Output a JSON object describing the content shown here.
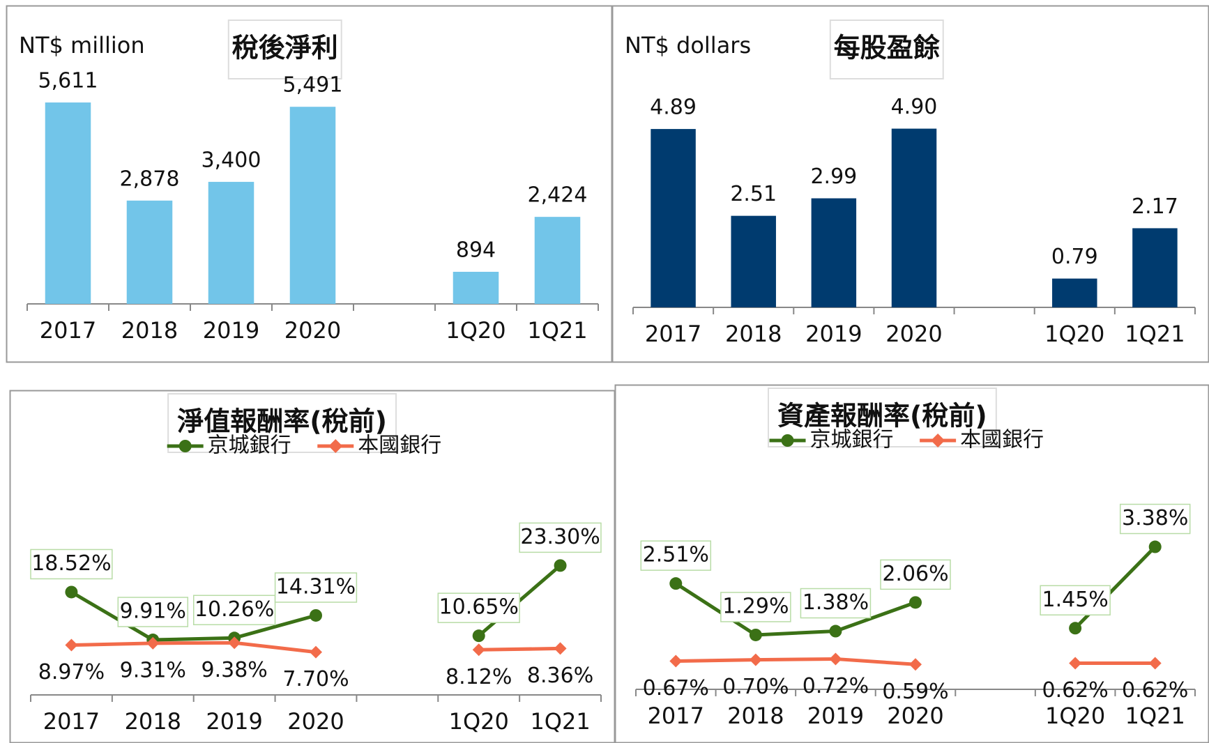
{
  "chart_data": [
    {
      "type": "bar",
      "title": "稅後淨利",
      "unit": "NT$ million",
      "color": "#72c5e9",
      "categories": [
        "2017",
        "2018",
        "2019",
        "2020",
        null,
        "1Q20",
        "1Q21"
      ],
      "values": [
        5611,
        2878,
        3400,
        5491,
        null,
        894,
        2424
      ],
      "value_labels": [
        "5,611",
        "2,878",
        "3,400",
        "5,491",
        null,
        "894",
        "2,424"
      ],
      "ylim": [
        0,
        6000
      ]
    },
    {
      "type": "bar",
      "title": "每股盈餘",
      "unit": "NT$ dollars",
      "color": "#003b6f",
      "categories": [
        "2017",
        "2018",
        "2019",
        "2020",
        null,
        "1Q20",
        "1Q21"
      ],
      "values": [
        4.89,
        2.51,
        2.99,
        4.9,
        null,
        0.79,
        2.17
      ],
      "value_labels": [
        "4.89",
        "2.51",
        "2.99",
        "4.90",
        null,
        "0.79",
        "2.17"
      ],
      "ylim": [
        0,
        6
      ]
    },
    {
      "type": "line",
      "title": "淨值報酬率(稅前)",
      "categories": [
        "2017",
        "2018",
        "2019",
        "2020",
        null,
        "1Q20",
        "1Q21"
      ],
      "series": [
        {
          "name": "京城銀行",
          "color": "#3b7116",
          "marker": "circle",
          "values": [
            18.52,
            9.91,
            10.26,
            14.31,
            null,
            10.65,
            23.3
          ],
          "value_labels": [
            "18.52%",
            "9.91%",
            "10.26%",
            "14.31%",
            null,
            "10.65%",
            "23.30%"
          ]
        },
        {
          "name": "本國銀行",
          "color": "#f26b4a",
          "marker": "diamond",
          "values": [
            8.97,
            9.31,
            9.38,
            7.7,
            null,
            8.12,
            8.36
          ],
          "value_labels": [
            "8.97%",
            "9.31%",
            "9.38%",
            "7.70%",
            null,
            "8.12%",
            "8.36%"
          ]
        }
      ],
      "ylim": [
        0,
        30
      ]
    },
    {
      "type": "line",
      "title": "資產報酬率(稅前)",
      "categories": [
        "2017",
        "2018",
        "2019",
        "2020",
        null,
        "1Q20",
        "1Q21"
      ],
      "series": [
        {
          "name": "京城銀行",
          "color": "#3b7116",
          "marker": "circle",
          "values": [
            2.51,
            1.29,
            1.38,
            2.06,
            null,
            1.45,
            3.38
          ],
          "value_labels": [
            "2.51%",
            "1.29%",
            "1.38%",
            "2.06%",
            null,
            "1.45%",
            "3.38%"
          ]
        },
        {
          "name": "本國銀行",
          "color": "#f26b4a",
          "marker": "diamond",
          "values": [
            0.67,
            0.7,
            0.72,
            0.59,
            null,
            0.62,
            0.62
          ],
          "value_labels": [
            "0.67%",
            "0.70%",
            "0.72%",
            "0.59%",
            null,
            "0.62%",
            "0.62%"
          ]
        }
      ],
      "ylim": [
        0,
        4
      ]
    }
  ]
}
